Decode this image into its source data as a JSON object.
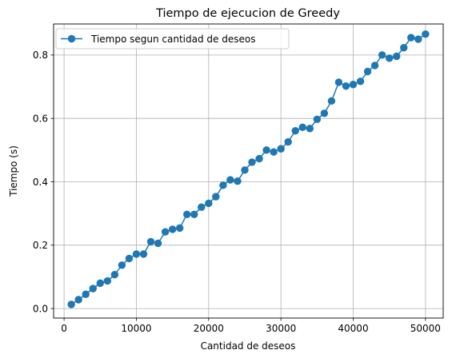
{
  "chart_data": {
    "type": "line",
    "title": "Tiempo de ejecucion de Greedy",
    "xlabel": "Cantidad de deseos",
    "ylabel": "Tiempo (s)",
    "xlim": [
      -1450,
      52450
    ],
    "ylim": [
      -0.03,
      0.898
    ],
    "xticks": [
      0,
      10000,
      20000,
      30000,
      40000,
      50000
    ],
    "yticks": [
      0.0,
      0.2,
      0.4,
      0.6,
      0.8
    ],
    "ytick_labels": [
      "0.0",
      "0.2",
      "0.4",
      "0.6",
      "0.8"
    ],
    "grid": true,
    "legend_position": "upper-left",
    "series": [
      {
        "name": "Tiempo segun cantidad de deseos",
        "color": "#1f77b4",
        "marker": "circle",
        "x": [
          1000,
          2000,
          3000,
          4000,
          5000,
          6000,
          7000,
          8000,
          9000,
          10000,
          11000,
          12000,
          13000,
          14000,
          15000,
          16000,
          17000,
          18000,
          19000,
          20000,
          21000,
          22000,
          23000,
          24000,
          25000,
          26000,
          27000,
          28000,
          29000,
          30000,
          31000,
          32000,
          33000,
          34000,
          35000,
          36000,
          37000,
          38000,
          39000,
          40000,
          41000,
          42000,
          43000,
          44000,
          45000,
          46000,
          47000,
          48000,
          49000,
          50000
        ],
        "y": [
          0.013,
          0.028,
          0.045,
          0.063,
          0.08,
          0.087,
          0.107,
          0.137,
          0.158,
          0.172,
          0.172,
          0.211,
          0.206,
          0.242,
          0.25,
          0.254,
          0.297,
          0.297,
          0.32,
          0.332,
          0.353,
          0.389,
          0.406,
          0.402,
          0.437,
          0.462,
          0.473,
          0.5,
          0.494,
          0.504,
          0.526,
          0.561,
          0.572,
          0.568,
          0.597,
          0.616,
          0.655,
          0.714,
          0.702,
          0.707,
          0.717,
          0.748,
          0.767,
          0.8,
          0.79,
          0.796,
          0.823,
          0.855,
          0.85,
          0.866
        ]
      }
    ]
  }
}
